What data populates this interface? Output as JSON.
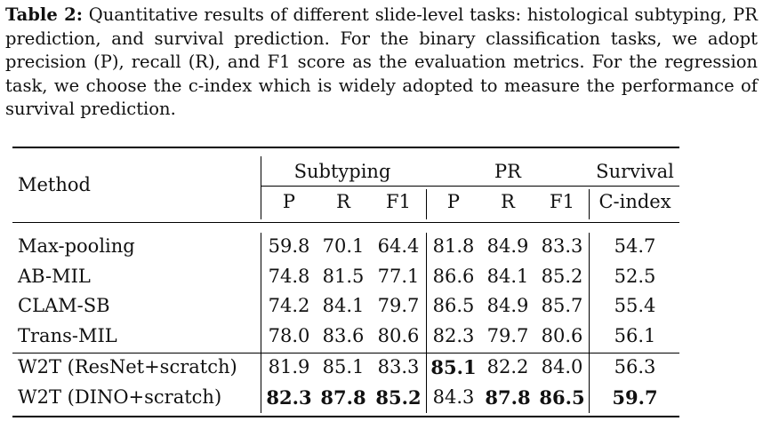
{
  "caption": {
    "label": "Table 2:",
    "text": "Quantitative results of different slide-level tasks: histological subtyping, PR prediction, and survival prediction. For the binary classification tasks, we adopt precision (P), recall (R), and F1 score as the evaluation metrics. For the regression task, we choose the c-index which is widely adopted to measure the performance of survival prediction."
  },
  "table": {
    "method_header": "Method",
    "groups": [
      "Subtyping",
      "PR",
      "Survival"
    ],
    "subheaders": [
      "P",
      "R",
      "F1",
      "P",
      "R",
      "F1",
      "C-index"
    ],
    "rows": [
      {
        "method": "Max-pooling",
        "values": [
          "59.8",
          "70.1",
          "64.4",
          "81.8",
          "84.9",
          "83.3",
          "54.7"
        ],
        "bold": [
          false,
          false,
          false,
          false,
          false,
          false,
          false
        ]
      },
      {
        "method": "AB-MIL",
        "values": [
          "74.8",
          "81.5",
          "77.1",
          "86.6",
          "84.1",
          "85.2",
          "52.5"
        ],
        "bold": [
          false,
          false,
          false,
          false,
          false,
          false,
          false
        ]
      },
      {
        "method": "CLAM-SB",
        "values": [
          "74.2",
          "84.1",
          "79.7",
          "86.5",
          "84.9",
          "85.7",
          "55.4"
        ],
        "bold": [
          false,
          false,
          false,
          false,
          false,
          false,
          false
        ]
      },
      {
        "method": "Trans-MIL",
        "values": [
          "78.0",
          "83.6",
          "80.6",
          "82.3",
          "79.7",
          "80.6",
          "56.1"
        ],
        "bold": [
          false,
          false,
          false,
          false,
          false,
          false,
          false
        ]
      },
      {
        "method": "W2T (ResNet+scratch)",
        "values": [
          "81.9",
          "85.1",
          "83.3",
          "85.1",
          "82.2",
          "84.0",
          "56.3"
        ],
        "bold": [
          false,
          false,
          false,
          true,
          false,
          false,
          false
        ]
      },
      {
        "method": "W2T (DINO+scratch)",
        "values": [
          "82.3",
          "87.8",
          "85.2",
          "84.3",
          "87.8",
          "86.5",
          "59.7"
        ],
        "bold": [
          true,
          true,
          true,
          false,
          true,
          true,
          true
        ]
      }
    ]
  }
}
